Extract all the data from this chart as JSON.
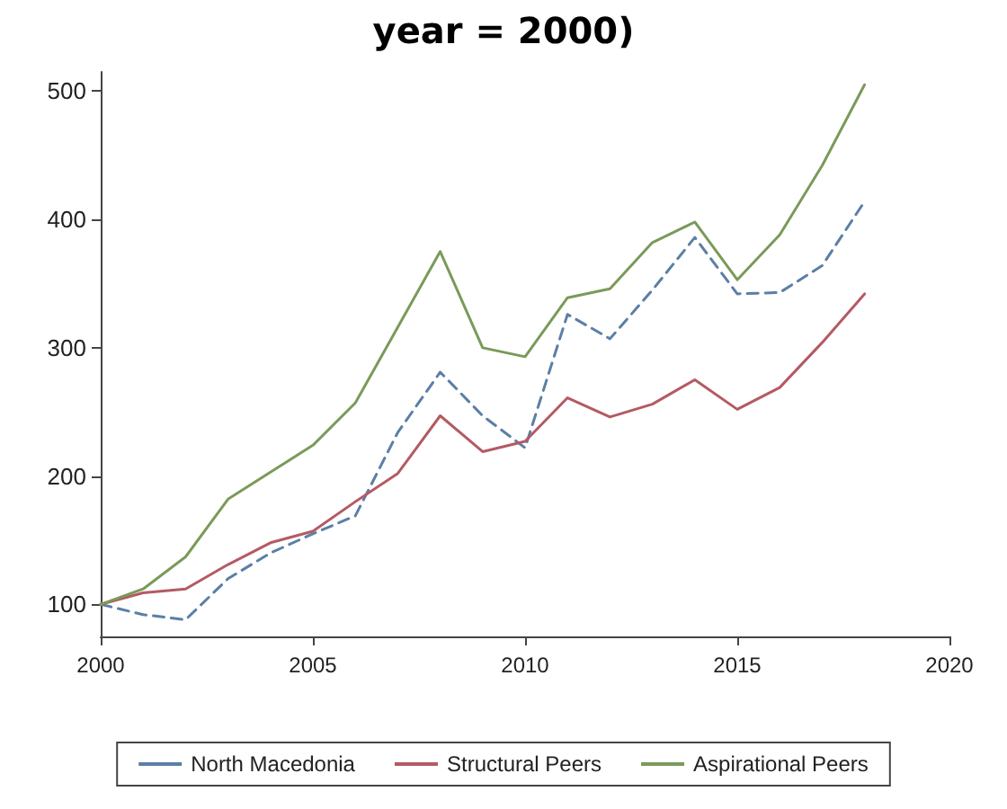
{
  "chart_data": {
    "type": "line",
    "title": "year = 2000)",
    "x": [
      2000,
      2001,
      2002,
      2003,
      2004,
      2005,
      2006,
      2007,
      2008,
      2009,
      2010,
      2011,
      2012,
      2013,
      2014,
      2015,
      2016,
      2017,
      2018
    ],
    "series": [
      {
        "name": "North Macedonia",
        "color": "#5b7fa6",
        "line_style": "dashed",
        "values": [
          100,
          92,
          88,
          120,
          140,
          155,
          169,
          234,
          281,
          247,
          222,
          326,
          307,
          345,
          386,
          342,
          343,
          364,
          414
        ]
      },
      {
        "name": "Structural Peers",
        "color": "#b45a63",
        "values": [
          100,
          109,
          112,
          131,
          148,
          157,
          180,
          202,
          247,
          219,
          227,
          261,
          246,
          256,
          275,
          252,
          269,
          304,
          342
        ]
      },
      {
        "name": "Aspirational Peers",
        "color": "#7a9a5a",
        "values": [
          100,
          112,
          137,
          182,
          203,
          224,
          257,
          316,
          375,
          300,
          293,
          339,
          346,
          382,
          398,
          353,
          388,
          442,
          505
        ]
      }
    ],
    "xlim": [
      2000,
      2020
    ],
    "xticks": [
      2000,
      2005,
      2010,
      2015,
      2020
    ],
    "ylim": [
      75,
      515
    ],
    "yticks": [
      100,
      200,
      300,
      400,
      500
    ],
    "grid": false,
    "legend": "bottom",
    "marker": "none",
    "line_style": "solid"
  }
}
